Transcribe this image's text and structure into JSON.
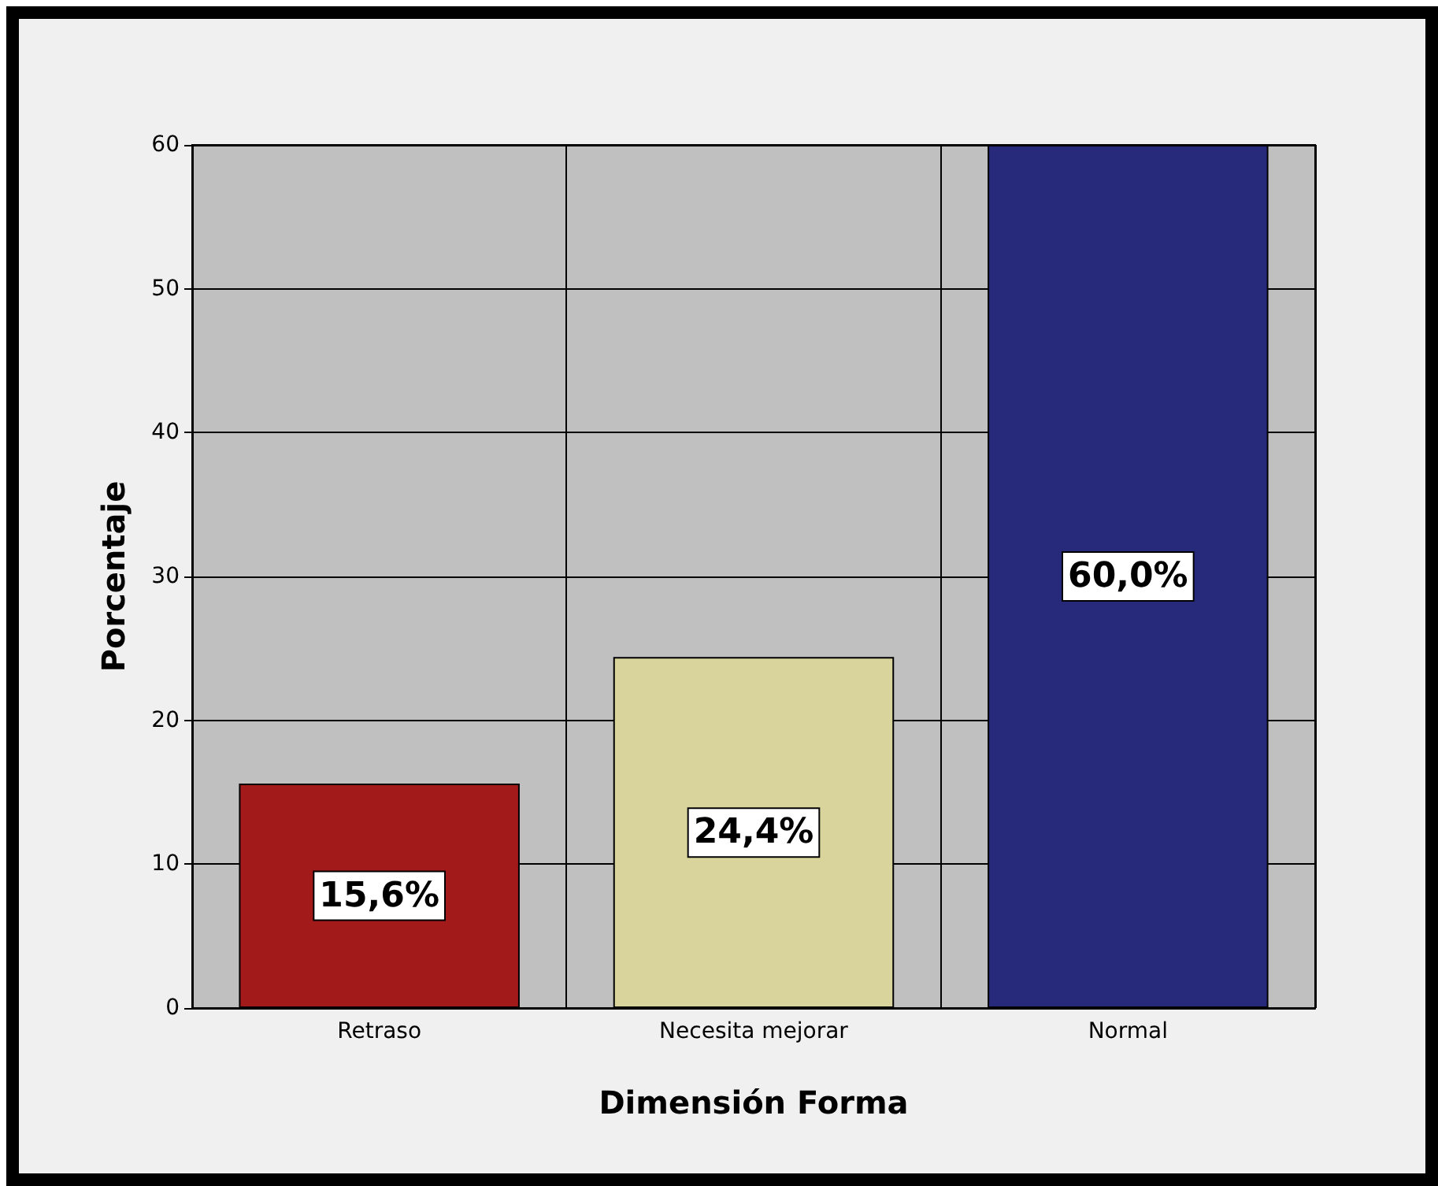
{
  "chart_data": {
    "type": "bar",
    "xlabel": "Dimensión Forma",
    "ylabel": "Porcentaje",
    "categories": [
      "Retraso",
      "Necesita mejorar",
      "Normal"
    ],
    "values": [
      15.6,
      24.4,
      60.0
    ],
    "colors": [
      "#a31a1a",
      "#d8d49c",
      "#27297a"
    ],
    "value_labels": [
      "15,6%",
      "24,4%",
      "60,0%"
    ],
    "ylim": [
      0,
      60
    ],
    "yticks": [
      0,
      10,
      20,
      30,
      40,
      50,
      60
    ],
    "grid": true
  }
}
